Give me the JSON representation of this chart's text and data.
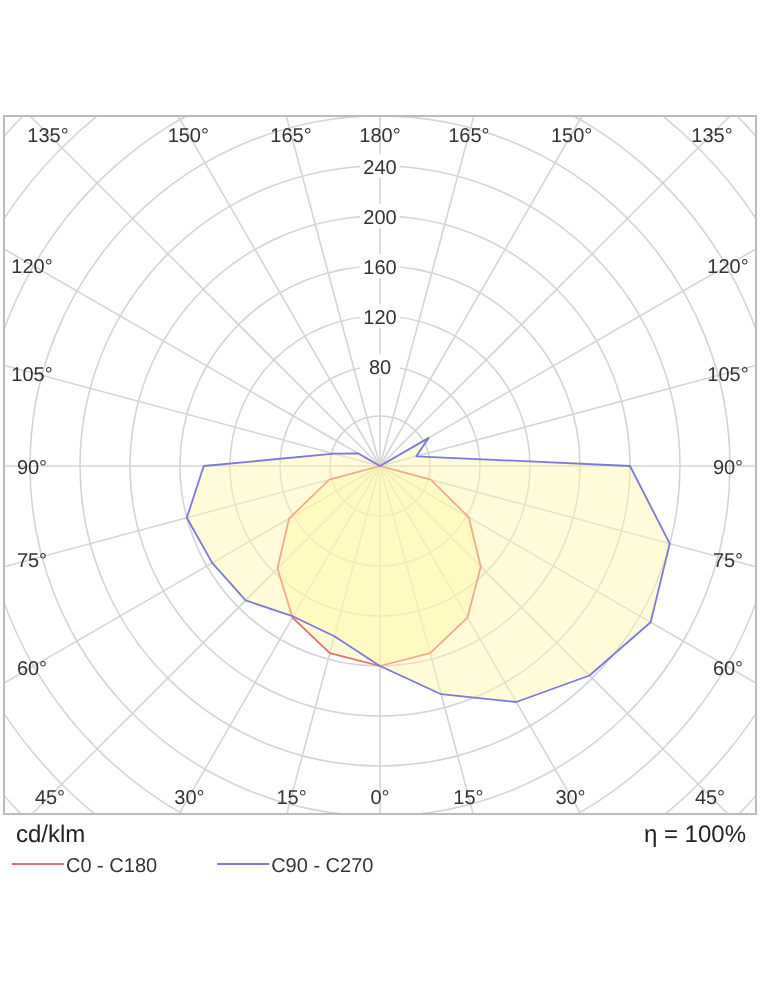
{
  "chart_data": {
    "type": "radar",
    "ylabel": "cd/klm",
    "annotations": [
      "η = 100%"
    ],
    "categories": [
      "180°",
      "165°",
      "150°",
      "135°",
      "120°",
      "105°",
      "90°",
      "75°",
      "60°",
      "45°",
      "30°",
      "15°",
      "0°",
      "15°",
      "30°",
      "45°",
      "60°",
      "75°",
      "90°",
      "105°",
      "120°",
      "135°",
      "150°",
      "165°"
    ],
    "ylim": [
      0,
      400
    ],
    "yticks": [
      80,
      120,
      160,
      200,
      240
    ],
    "grid": true,
    "legend": "bottom left",
    "series": [
      {
        "name": "C0 - C180",
        "color": "#e07070",
        "values": [
          0,
          0,
          0,
          0,
          0,
          0,
          0,
          42,
          82,
          114,
          140,
          155,
          160,
          155,
          140,
          116,
          84,
          42,
          0,
          0,
          0,
          0,
          0,
          0
        ]
      },
      {
        "name": "C90 - C270",
        "color": "#7a7ad8",
        "values": [
          0,
          0,
          0,
          0,
          45,
          30,
          200,
          240,
          250,
          237,
          218,
          189,
          160,
          141,
          139,
          152,
          155,
          160,
          141,
          38,
          20,
          0,
          0,
          0
        ]
      }
    ]
  }
}
